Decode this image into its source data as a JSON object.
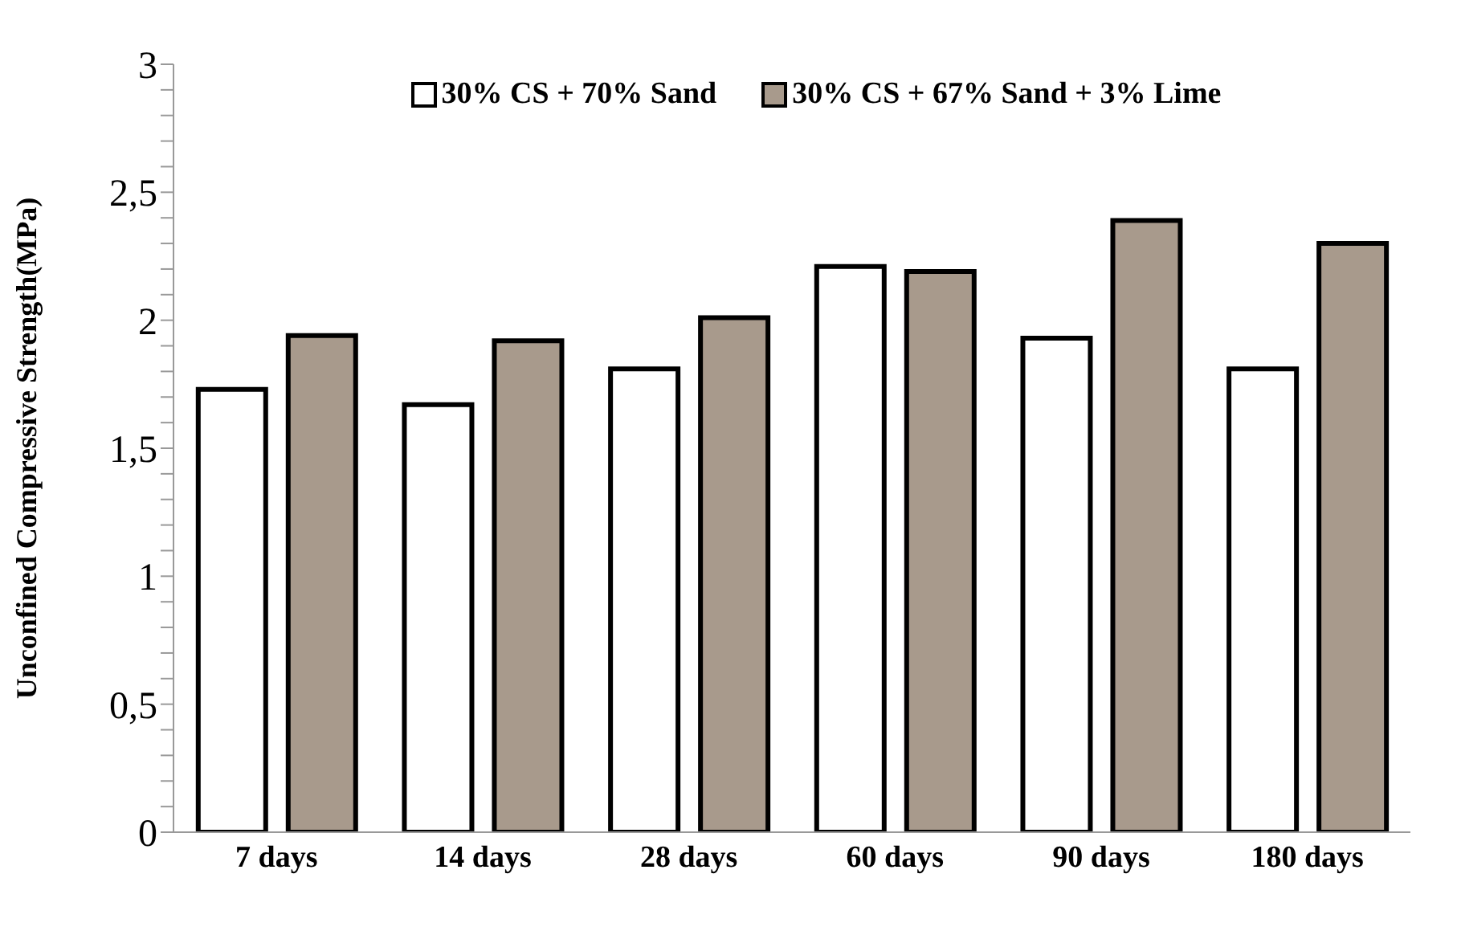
{
  "chart_data": {
    "type": "bar",
    "ylabel": "Unconfined Compressive Strength(MPa)",
    "categories": [
      "7 days",
      "14 days",
      "28 days",
      "60 days",
      "90 days",
      "180 days"
    ],
    "series": [
      {
        "name": "30% CS + 70% Sand",
        "color": "#ffffff",
        "values": [
          1.73,
          1.67,
          1.81,
          2.21,
          1.93,
          1.81
        ]
      },
      {
        "name": "30% CS + 67% Sand + 3% Lime",
        "color": "#a89a8c",
        "values": [
          1.94,
          1.92,
          2.01,
          2.19,
          2.39,
          2.3
        ]
      }
    ],
    "ylim": [
      0,
      3
    ],
    "yticks": [
      0,
      {
        "value": 0.1,
        "label": null
      },
      {
        "value": 0.2,
        "label": null
      },
      {
        "value": 0.3,
        "label": null
      },
      {
        "value": 0.4,
        "label": null
      },
      {
        "value": 0.5,
        "label": "0,5"
      },
      {
        "value": 0.6,
        "label": null
      },
      {
        "value": 0.7,
        "label": null
      },
      {
        "value": 0.8,
        "label": null
      },
      {
        "value": 0.9,
        "label": null
      },
      1,
      {
        "value": 1.1,
        "label": null
      },
      {
        "value": 1.2,
        "label": null
      },
      {
        "value": 1.3,
        "label": null
      },
      {
        "value": 1.4,
        "label": null
      },
      {
        "value": 1.5,
        "label": "1,5"
      },
      {
        "value": 1.6,
        "label": null
      },
      {
        "value": 1.7,
        "label": null
      },
      {
        "value": 1.8,
        "label": null
      },
      {
        "value": 1.9,
        "label": null
      },
      2,
      {
        "value": 2.1,
        "label": null
      },
      {
        "value": 2.2,
        "label": null
      },
      {
        "value": 2.3,
        "label": null
      },
      {
        "value": 2.4,
        "label": null
      },
      {
        "value": 2.5,
        "label": "2,5"
      },
      {
        "value": 2.6,
        "label": null
      },
      {
        "value": 2.7,
        "label": null
      },
      {
        "value": 2.8,
        "label": null
      },
      {
        "value": 2.9,
        "label": null
      },
      3
    ],
    "grid": false,
    "legend": "top"
  }
}
